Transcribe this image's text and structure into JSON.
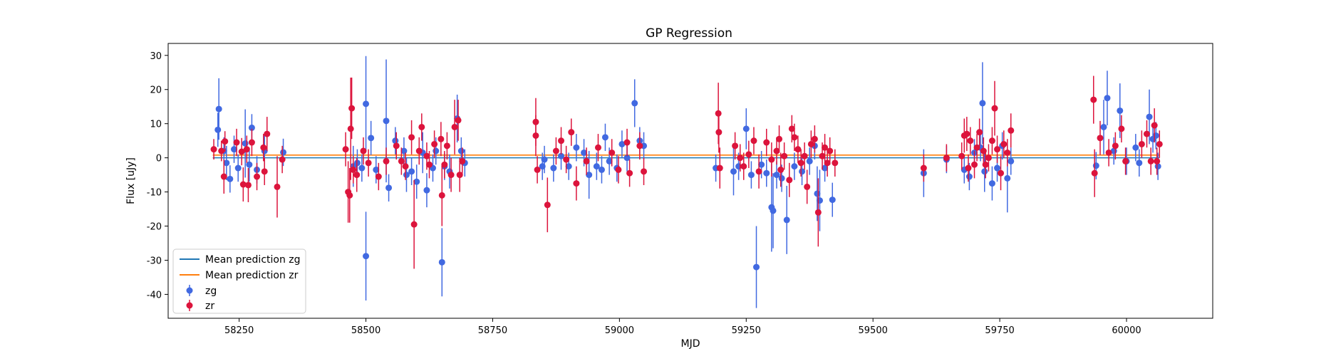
{
  "chart_data": {
    "type": "scatter",
    "title": "GP Regression",
    "xlabel": "MJD",
    "ylabel": "Flux [uJy]",
    "xlim": [
      58110,
      60170
    ],
    "ylim": [
      -47,
      33.5
    ],
    "xticks": [
      58250,
      58500,
      58750,
      59000,
      59250,
      59500,
      59750,
      60000
    ],
    "yticks": [
      -40,
      -30,
      -20,
      -10,
      0,
      10,
      20,
      30
    ],
    "legend_position": "lower left",
    "grid": false,
    "lines": [
      {
        "name": "Mean prediction zg",
        "color": "#1f77b4",
        "x": [
          58198,
          60065
        ],
        "y": [
          0.0,
          0.0
        ]
      },
      {
        "name": "Mean prediction zr",
        "color": "#ff7f0e",
        "x": [
          58198,
          60065
        ],
        "y": [
          0.8,
          0.8
        ]
      }
    ],
    "series": [
      {
        "name": "zg",
        "color": "#4169e1",
        "points": [
          [
            58208,
            8.2,
            5
          ],
          [
            58210,
            14.3,
            9
          ],
          [
            58220,
            2.0,
            4
          ],
          [
            58225,
            -1.5,
            5
          ],
          [
            58232,
            -6.2,
            4
          ],
          [
            58240,
            2.5,
            4
          ],
          [
            58248,
            -3.0,
            4
          ],
          [
            58262,
            4.2,
            10
          ],
          [
            58270,
            -2.0,
            5
          ],
          [
            58275,
            8.8,
            4
          ],
          [
            58285,
            -3.5,
            4
          ],
          [
            58300,
            2.0,
            5
          ],
          [
            58337,
            1.6,
            4
          ],
          [
            58475,
            -2.5,
            6
          ],
          [
            58483,
            -1.5,
            4
          ],
          [
            58492,
            -3.0,
            4
          ],
          [
            58500,
            15.8,
            14
          ],
          [
            58500,
            -28.8,
            13
          ],
          [
            58510,
            5.8,
            5
          ],
          [
            58520,
            -3.5,
            4
          ],
          [
            58540,
            10.8,
            18
          ],
          [
            58545,
            -8.8,
            4
          ],
          [
            58558,
            5.0,
            4
          ],
          [
            58575,
            2.0,
            4
          ],
          [
            58580,
            -5.0,
            5
          ],
          [
            58590,
            -4.0,
            4
          ],
          [
            58600,
            -7.0,
            5
          ],
          [
            58612,
            1.5,
            6
          ],
          [
            58620,
            -9.5,
            5
          ],
          [
            58632,
            -3.0,
            4
          ],
          [
            58638,
            2.0,
            4
          ],
          [
            58650,
            -30.6,
            10
          ],
          [
            58655,
            -2.5,
            4
          ],
          [
            58665,
            -4.0,
            5
          ],
          [
            58680,
            11.5,
            7
          ],
          [
            58688,
            2.0,
            4
          ],
          [
            58695,
            -1.5,
            4
          ],
          [
            58848,
            -2.5,
            4
          ],
          [
            58852,
            -0.5,
            4
          ],
          [
            58870,
            -3.0,
            4
          ],
          [
            58885,
            0.5,
            4
          ],
          [
            58900,
            -2.5,
            4
          ],
          [
            58915,
            3.0,
            4
          ],
          [
            58930,
            1.5,
            4
          ],
          [
            58940,
            -5.0,
            7
          ],
          [
            58955,
            -2.5,
            4
          ],
          [
            58965,
            -3.5,
            4
          ],
          [
            58972,
            6.0,
            4
          ],
          [
            58980,
            -1.0,
            4
          ],
          [
            58995,
            -3.0,
            4
          ],
          [
            59005,
            4.0,
            4
          ],
          [
            59015,
            0.0,
            4
          ],
          [
            59030,
            16.0,
            7
          ],
          [
            59040,
            5.0,
            4
          ],
          [
            59048,
            3.5,
            4
          ],
          [
            59190,
            -3.0,
            4
          ],
          [
            59225,
            -4.0,
            7
          ],
          [
            59235,
            -2.5,
            4
          ],
          [
            59250,
            8.5,
            6
          ],
          [
            59260,
            -5.0,
            4
          ],
          [
            59270,
            -32.0,
            12
          ],
          [
            59280,
            -2.0,
            4
          ],
          [
            59290,
            -4.5,
            4
          ],
          [
            59300,
            -14.5,
            13
          ],
          [
            59303,
            -15.5,
            11
          ],
          [
            59310,
            -5.0,
            4
          ],
          [
            59320,
            -6.0,
            4
          ],
          [
            59330,
            -18.2,
            10
          ],
          [
            59345,
            -2.5,
            4
          ],
          [
            59360,
            -4.0,
            4
          ],
          [
            59375,
            -1.0,
            4
          ],
          [
            59385,
            3.5,
            4
          ],
          [
            59390,
            -10.5,
            8
          ],
          [
            59395,
            -12.5,
            9
          ],
          [
            59405,
            -3.0,
            4
          ],
          [
            59420,
            -12.3,
            5
          ],
          [
            59600,
            -4.5,
            7
          ],
          [
            59645,
            -0.5,
            4
          ],
          [
            59680,
            -3.5,
            4
          ],
          [
            59690,
            -5.5,
            4
          ],
          [
            59700,
            1.5,
            4
          ],
          [
            59712,
            3.0,
            4
          ],
          [
            59716,
            16.0,
            12
          ],
          [
            59720,
            -4.0,
            6
          ],
          [
            59735,
            -7.5,
            5
          ],
          [
            59745,
            -3.0,
            4
          ],
          [
            59755,
            3.5,
            4
          ],
          [
            59765,
            -6.0,
            10
          ],
          [
            59772,
            -1.0,
            4
          ],
          [
            59940,
            -2.3,
            4
          ],
          [
            59955,
            9.0,
            8
          ],
          [
            59962,
            17.5,
            8
          ],
          [
            59975,
            2.0,
            4
          ],
          [
            59987,
            13.8,
            8
          ],
          [
            60000,
            -1.0,
            4
          ],
          [
            60018,
            3.0,
            4
          ],
          [
            60025,
            -1.5,
            4
          ],
          [
            60045,
            12.0,
            8
          ],
          [
            60052,
            5.5,
            4
          ],
          [
            60058,
            6.5,
            4
          ],
          [
            60062,
            -2.5,
            4
          ]
        ]
      },
      {
        "name": "zr",
        "color": "#dc143c",
        "points": [
          [
            58200,
            2.5,
            3
          ],
          [
            58215,
            2.0,
            3
          ],
          [
            58220,
            -5.5,
            5
          ],
          [
            58222,
            4.8,
            3
          ],
          [
            58245,
            4.5,
            4
          ],
          [
            58255,
            1.8,
            4
          ],
          [
            58258,
            -7.8,
            5
          ],
          [
            58265,
            2.5,
            4
          ],
          [
            58268,
            -8.0,
            5
          ],
          [
            58275,
            4.5,
            4
          ],
          [
            58285,
            -5.5,
            4
          ],
          [
            58298,
            3.0,
            4
          ],
          [
            58300,
            -4.0,
            4
          ],
          [
            58305,
            7.0,
            5
          ],
          [
            58325,
            -8.5,
            9
          ],
          [
            58335,
            -0.5,
            4
          ],
          [
            58460,
            2.5,
            5
          ],
          [
            58465,
            -10.0,
            9
          ],
          [
            58468,
            -11.0,
            8
          ],
          [
            58470,
            8.5,
            15
          ],
          [
            58472,
            14.5,
            9
          ],
          [
            58475,
            -3.5,
            4
          ],
          [
            58482,
            -5.0,
            5
          ],
          [
            58495,
            2.0,
            4
          ],
          [
            58505,
            -1.5,
            4
          ],
          [
            58525,
            -5.5,
            4
          ],
          [
            58540,
            -1.0,
            4
          ],
          [
            58560,
            3.5,
            4
          ],
          [
            58570,
            -1.0,
            4
          ],
          [
            58578,
            -2.5,
            4
          ],
          [
            58590,
            6.0,
            5
          ],
          [
            58595,
            -19.5,
            13
          ],
          [
            58605,
            2.0,
            4
          ],
          [
            58610,
            9.0,
            4
          ],
          [
            58620,
            0.5,
            4
          ],
          [
            58625,
            -2.0,
            4
          ],
          [
            58635,
            4.0,
            4
          ],
          [
            58648,
            5.5,
            5
          ],
          [
            58650,
            -11.0,
            9
          ],
          [
            58655,
            -2.0,
            4
          ],
          [
            58660,
            3.5,
            4
          ],
          [
            58668,
            -5.0,
            5
          ],
          [
            58675,
            9.0,
            8
          ],
          [
            58682,
            11.0,
            6
          ],
          [
            58685,
            -5.0,
            5
          ],
          [
            58690,
            -1.0,
            4
          ],
          [
            58835,
            10.5,
            7
          ],
          [
            58835,
            6.5,
            6
          ],
          [
            58838,
            -3.5,
            4
          ],
          [
            58858,
            -13.8,
            8
          ],
          [
            58875,
            2.0,
            4
          ],
          [
            58885,
            5.0,
            4
          ],
          [
            58895,
            -0.5,
            4
          ],
          [
            58905,
            7.5,
            4
          ],
          [
            58915,
            -7.5,
            5
          ],
          [
            58935,
            -1.0,
            4
          ],
          [
            58958,
            3.0,
            4
          ],
          [
            58985,
            1.5,
            4
          ],
          [
            58998,
            -3.5,
            4
          ],
          [
            59015,
            4.5,
            4
          ],
          [
            59020,
            -4.5,
            4
          ],
          [
            59040,
            3.5,
            4
          ],
          [
            59048,
            -4.0,
            4
          ],
          [
            59195,
            13.0,
            9
          ],
          [
            59196,
            7.5,
            6
          ],
          [
            59198,
            -3.0,
            6
          ],
          [
            59228,
            3.5,
            4
          ],
          [
            59238,
            0.0,
            4
          ],
          [
            59245,
            -2.5,
            4
          ],
          [
            59255,
            1.0,
            4
          ],
          [
            59265,
            5.0,
            4
          ],
          [
            59275,
            -4.0,
            5
          ],
          [
            59290,
            4.5,
            4
          ],
          [
            59300,
            -0.5,
            5
          ],
          [
            59310,
            2.0,
            4
          ],
          [
            59315,
            5.5,
            4
          ],
          [
            59318,
            -3.5,
            5
          ],
          [
            59325,
            0.5,
            4
          ],
          [
            59335,
            -6.5,
            5
          ],
          [
            59340,
            8.5,
            4
          ],
          [
            59345,
            6.0,
            4
          ],
          [
            59352,
            2.5,
            4
          ],
          [
            59358,
            -1.5,
            4
          ],
          [
            59365,
            0.5,
            4
          ],
          [
            59370,
            -8.5,
            5
          ],
          [
            59378,
            4.0,
            4
          ],
          [
            59385,
            5.5,
            4
          ],
          [
            59392,
            -16.0,
            10
          ],
          [
            59400,
            0.5,
            4
          ],
          [
            59405,
            3.0,
            4
          ],
          [
            59410,
            -1.5,
            4
          ],
          [
            59415,
            2.0,
            4
          ],
          [
            59425,
            -1.5,
            4
          ],
          [
            59600,
            -3.0,
            4
          ],
          [
            59645,
            0.0,
            4
          ],
          [
            59675,
            0.5,
            4
          ],
          [
            59680,
            6.5,
            5
          ],
          [
            59685,
            7.0,
            5
          ],
          [
            59688,
            -3.0,
            4
          ],
          [
            59692,
            5.0,
            4
          ],
          [
            59700,
            -2.0,
            4
          ],
          [
            59705,
            3.0,
            4
          ],
          [
            59710,
            7.5,
            4
          ],
          [
            59718,
            2.0,
            4
          ],
          [
            59722,
            -2.0,
            4
          ],
          [
            59728,
            0.0,
            4
          ],
          [
            59735,
            5.0,
            4
          ],
          [
            59740,
            14.5,
            8
          ],
          [
            59745,
            2.5,
            4
          ],
          [
            59752,
            -4.5,
            5
          ],
          [
            59758,
            4.0,
            4
          ],
          [
            59765,
            1.5,
            4
          ],
          [
            59772,
            8.0,
            5
          ],
          [
            59935,
            17.0,
            7
          ],
          [
            59937,
            -4.5,
            7
          ],
          [
            59948,
            5.8,
            5
          ],
          [
            59965,
            1.5,
            4
          ],
          [
            59978,
            3.5,
            4
          ],
          [
            59990,
            8.5,
            4
          ],
          [
            59998,
            -1.0,
            4
          ],
          [
            60030,
            4.0,
            4
          ],
          [
            60040,
            7.0,
            4
          ],
          [
            60048,
            -1.0,
            4
          ],
          [
            60055,
            9.5,
            5
          ],
          [
            60060,
            -1.0,
            4
          ],
          [
            60065,
            4.0,
            4
          ]
        ]
      }
    ]
  }
}
